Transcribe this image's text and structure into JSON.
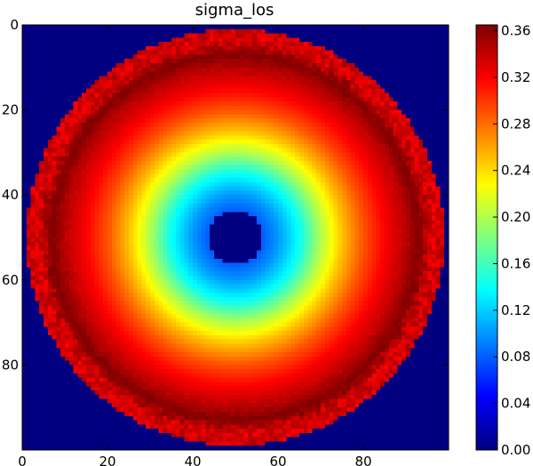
{
  "chart_data": {
    "type": "heatmap",
    "title": "sigma_los",
    "xlabel": "",
    "ylabel": "",
    "grid": false,
    "colormap": "jet",
    "x_range": [
      0,
      100
    ],
    "y_range": [
      0,
      100
    ],
    "y_axis_inverted": true,
    "x_ticks": [
      "0",
      "20",
      "40",
      "60",
      "80"
    ],
    "y_ticks": [
      "0",
      "20",
      "40",
      "60",
      "80"
    ],
    "colorbar": {
      "min": 0.0,
      "max": 0.365,
      "ticks": [
        "0.00",
        "0.04",
        "0.08",
        "0.12",
        "0.16",
        "0.20",
        "0.24",
        "0.28",
        "0.32",
        "0.36"
      ]
    },
    "field": {
      "grid_size": 100,
      "center": [
        50,
        50
      ],
      "background_value": 0.0,
      "inner_hole_radius": 6.5,
      "outer_radius": 49,
      "radial_profile": [
        {
          "r": 6.5,
          "value": 0.08
        },
        {
          "r": 10,
          "value": 0.1
        },
        {
          "r": 15,
          "value": 0.14
        },
        {
          "r": 20,
          "value": 0.2
        },
        {
          "r": 25,
          "value": 0.25
        },
        {
          "r": 30,
          "value": 0.29
        },
        {
          "r": 35,
          "value": 0.32
        },
        {
          "r": 40,
          "value": 0.345
        },
        {
          "r": 43,
          "value": 0.365
        },
        {
          "r": 46,
          "value": 0.335
        },
        {
          "r": 49,
          "value": 0.335
        }
      ]
    }
  }
}
